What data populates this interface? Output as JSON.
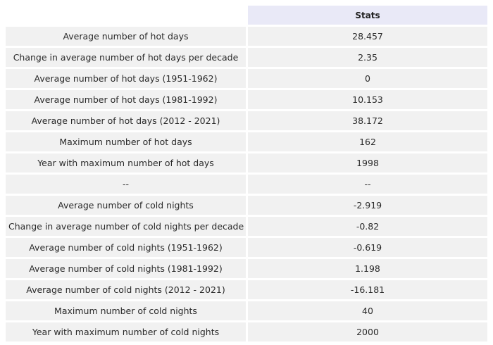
{
  "table": {
    "header": {
      "label": "",
      "value": "Stats"
    },
    "rows": [
      {
        "label": "Average number of hot days",
        "value": "28.457"
      },
      {
        "label": "Change in average number of hot days per decade",
        "value": "2.35"
      },
      {
        "label": "Average number of hot days (1951-1962)",
        "value": "0"
      },
      {
        "label": "Average number of hot days (1981-1992)",
        "value": "10.153"
      },
      {
        "label": "Average number of hot days (2012 - 2021)",
        "value": "38.172"
      },
      {
        "label": "Maximum number of hot days",
        "value": "162"
      },
      {
        "label": "Year with maximum number of hot days",
        "value": "1998"
      },
      {
        "label": "--",
        "value": "--"
      },
      {
        "label": "Average number of cold nights",
        "value": "-2.919"
      },
      {
        "label": "Change in average number of cold nights per decade",
        "value": "-0.82"
      },
      {
        "label": "Average number of cold nights (1951-1962)",
        "value": "-0.619"
      },
      {
        "label": "Average number of cold nights (1981-1992)",
        "value": "1.198"
      },
      {
        "label": "Average number of cold nights (2012 - 2021)",
        "value": "-16.181"
      },
      {
        "label": "Maximum number of cold nights",
        "value": "40"
      },
      {
        "label": "Year with maximum number of cold nights",
        "value": "2000"
      }
    ]
  }
}
